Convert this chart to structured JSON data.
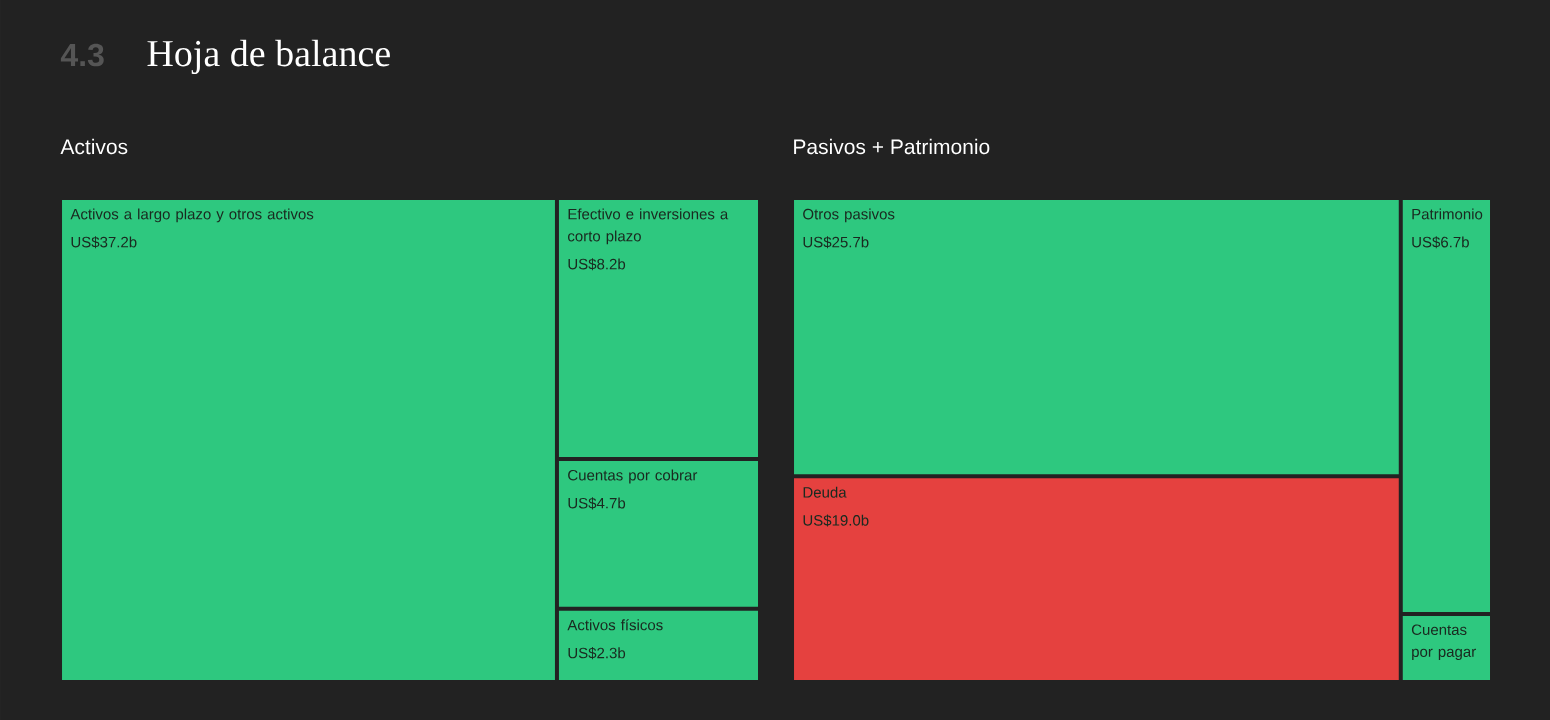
{
  "chart_data": [
    {
      "type": "other",
      "title": "Hoja de balance",
      "annotations": [
        "4.3"
      ]
    },
    {
      "type": "other",
      "title": "Activos",
      "categories": [
        "Activos a largo plazo y otros activos",
        "Efectivo e inversiones a corto plazo",
        "Cuentas por cobrar",
        "Activos físicos"
      ],
      "values": [
        37200000000,
        8200000000,
        4700000000,
        2300000000
      ],
      "value_labels": [
        "US$37.2b",
        "US$8.2b",
        "US$4.7b",
        "US$2.3b"
      ],
      "data_labels": true,
      "colors": [
        "#2ec87f",
        "#2ec87f",
        "#2ec87f",
        "#2ec87f"
      ]
    },
    {
      "type": "other",
      "title": "Pasivos + Patrimonio",
      "categories": [
        "Otros pasivos",
        "Deuda",
        "Patrimonio",
        "Cuentas por pagar"
      ],
      "values": [
        25700000000,
        19000000000,
        6700000000,
        null
      ],
      "value_labels": [
        "US$25.7b",
        "US$19.0b",
        "US$6.7b",
        null
      ],
      "data_labels": true,
      "colors": [
        "#2ec87f",
        "#e5413f",
        "#2ec87f",
        "#2ec87f"
      ]
    }
  ]
}
